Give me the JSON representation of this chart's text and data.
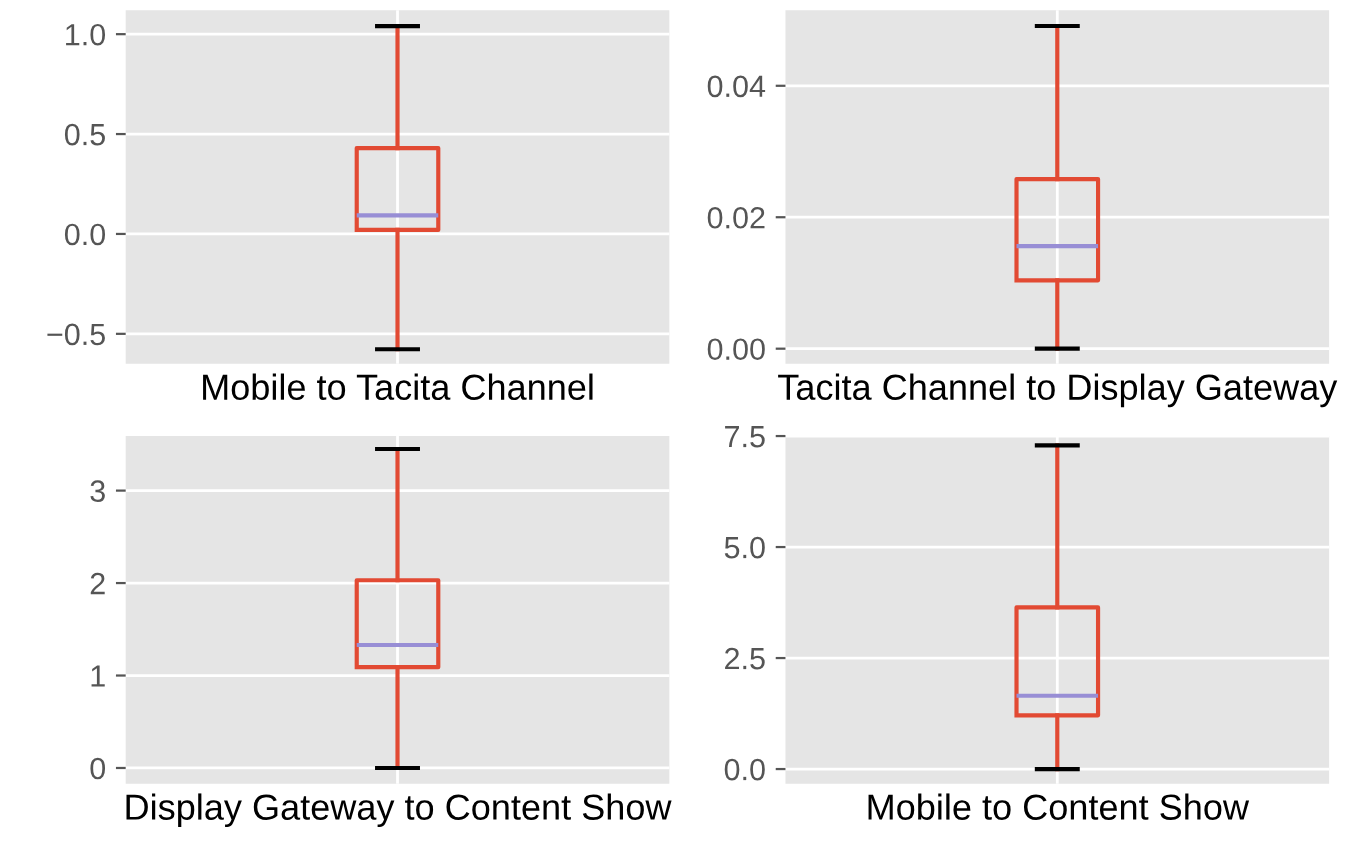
{
  "chart_data": [
    {
      "type": "box",
      "categories": [
        "Mobile to Tacita Channel"
      ],
      "ylim": [
        -0.65,
        1.12
      ],
      "yticks": [
        {
          "value": -0.5,
          "label": "−0.5"
        },
        {
          "value": 0,
          "label": "0.0"
        },
        0.5,
        {
          "value": 1,
          "label": "1.0"
        }
      ],
      "grid": true,
      "color": "#e24a33",
      "boxes": [
        {
          "low": -0.577,
          "q1": 0.02,
          "median": 0.093,
          "q3": 0.43,
          "high": 1.04
        }
      ]
    },
    {
      "type": "box",
      "categories": [
        "Tacita Channel to Display Gateway"
      ],
      "ylim": [
        -0.0023,
        0.0515
      ],
      "yticks": [
        {
          "value": 0,
          "label": "0.00"
        },
        0.02,
        0.04
      ],
      "grid": true,
      "color": "#e24a33",
      "boxes": [
        {
          "low": 0,
          "q1": 0.0104,
          "median": 0.0156,
          "q3": 0.0258,
          "high": 0.0491
        }
      ]
    },
    {
      "type": "box",
      "categories": [
        "Display Gateway to Content Show"
      ],
      "ylim": [
        -0.17,
        3.59
      ],
      "yticks": [
        0,
        1,
        2,
        3
      ],
      "grid": true,
      "color": "#e24a33",
      "boxes": [
        {
          "low": 0,
          "q1": 1.09,
          "median": 1.33,
          "q3": 2.03,
          "high": 3.45
        }
      ]
    },
    {
      "type": "box",
      "categories": [
        "Mobile to Content Show"
      ],
      "ylim": [
        -0.33,
        7.5
      ],
      "yticks": [
        {
          "value": 0,
          "label": "0.0"
        },
        2.5,
        {
          "value": 5,
          "label": "5.0"
        },
        7.5
      ],
      "grid": true,
      "color": "#e24a33",
      "boxes": [
        {
          "low": 0,
          "q1": 1.21,
          "median": 1.65,
          "q3": 3.64,
          "high": 7.29
        }
      ]
    }
  ]
}
